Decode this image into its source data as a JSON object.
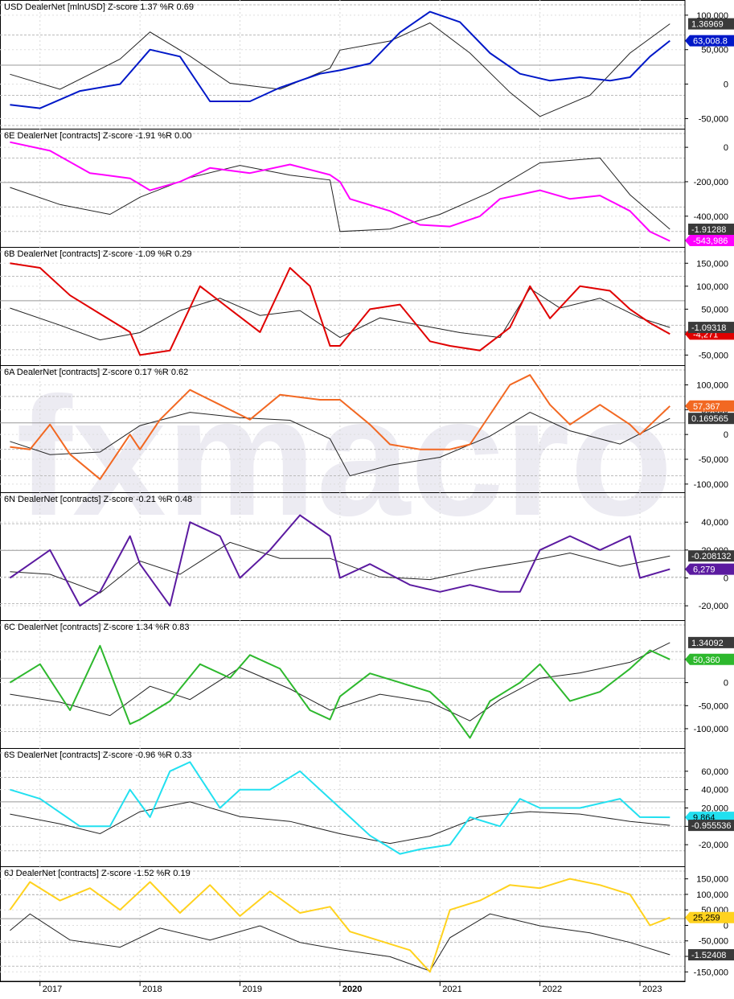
{
  "watermark": "fxmacro",
  "x_axis": {
    "year_labels": [
      "2017",
      "2018",
      "2019",
      "2020",
      "2021",
      "2022",
      "2023"
    ],
    "bold_year": "2020"
  },
  "chart_data": [
    {
      "type": "line",
      "title": "USD DealerNet [mlnUSD] Z-score 1.37   %R 0.69",
      "color": "#0018c8",
      "yticks": [
        "100,000",
        "50,000",
        "0",
        "-50,000"
      ],
      "value_label": "63,008.8",
      "zscore_label": "1.36969",
      "series": [
        {
          "name": "USD DealerNet [mlnUSD]",
          "x": [
            2016.7,
            2017.0,
            2017.4,
            2017.8,
            2018.1,
            2018.4,
            2018.7,
            2019.1,
            2019.4,
            2019.8,
            2020.0,
            2020.3,
            2020.6,
            2020.9,
            2021.2,
            2021.5,
            2021.8,
            2022.1,
            2022.4,
            2022.7,
            2022.9,
            2023.1,
            2023.3
          ],
          "values": [
            -30000,
            -35000,
            -10000,
            0,
            50000,
            40000,
            -25000,
            -25000,
            -5000,
            15000,
            20000,
            30000,
            75000,
            105000,
            90000,
            45000,
            15000,
            5000,
            10000,
            5000,
            10000,
            40000,
            63008.8
          ]
        },
        {
          "name": "Z-score",
          "x": [
            2016.7,
            2017.2,
            2017.8,
            2018.1,
            2018.5,
            2018.9,
            2019.4,
            2019.9,
            2020.0,
            2020.5,
            2020.9,
            2021.3,
            2021.7,
            2022.0,
            2022.5,
            2022.9,
            2023.3
          ],
          "values": [
            -0.3,
            -0.8,
            0.2,
            1.1,
            0.3,
            -0.6,
            -0.8,
            -0.1,
            0.5,
            0.8,
            1.4,
            0.4,
            -0.9,
            -1.7,
            -1.0,
            0.4,
            1.37
          ]
        }
      ],
      "ylim": [
        -60000,
        115000
      ],
      "zlim": [
        -2,
        2
      ]
    },
    {
      "type": "line",
      "title": "6E DealerNet [contracts] Z-score -1.91   %R 0.00",
      "color": "#ff00ff",
      "yticks": [
        "0",
        "-200,000",
        "-400,000"
      ],
      "value_label": "-543,986",
      "zscore_label": "-1.91288",
      "series": [
        {
          "name": "6E DealerNet [contracts]",
          "x": [
            2016.7,
            2017.1,
            2017.5,
            2017.9,
            2018.1,
            2018.4,
            2018.7,
            2019.1,
            2019.5,
            2019.9,
            2020.0,
            2020.1,
            2020.5,
            2020.8,
            2021.1,
            2021.4,
            2021.6,
            2022.0,
            2022.3,
            2022.6,
            2022.9,
            2023.1,
            2023.3
          ],
          "values": [
            30000,
            -20000,
            -150000,
            -180000,
            -250000,
            -200000,
            -120000,
            -150000,
            -100000,
            -160000,
            -200000,
            -300000,
            -370000,
            -450000,
            -460000,
            -400000,
            -300000,
            -250000,
            -300000,
            -280000,
            -370000,
            -490000,
            -543986
          ]
        },
        {
          "name": "Z-score",
          "x": [
            2016.7,
            2017.2,
            2017.7,
            2018.0,
            2018.5,
            2019.0,
            2019.5,
            2019.9,
            2020.0,
            2020.5,
            2021.0,
            2021.5,
            2022.0,
            2022.6,
            2022.9,
            2023.3
          ],
          "values": [
            -0.2,
            -0.9,
            -1.3,
            -0.6,
            0.2,
            0.7,
            0.3,
            0.1,
            -2.0,
            -1.9,
            -1.3,
            -0.4,
            0.8,
            1.0,
            -0.5,
            -1.91
          ]
        }
      ],
      "ylim": [
        -560000,
        80000
      ],
      "zlim": [
        -2.5,
        2
      ]
    },
    {
      "type": "line",
      "title": "6B DealerNet [contracts] Z-score -1.09   %R 0.29",
      "color": "#e00000",
      "yticks": [
        "150,000",
        "100,000",
        "50,000",
        "0",
        "-50,000"
      ],
      "value_label": "-4,271",
      "zscore_label": "-1.09318",
      "series": [
        {
          "name": "6B DealerNet [contracts]",
          "x": [
            2016.7,
            2017.0,
            2017.3,
            2017.6,
            2017.9,
            2018.0,
            2018.3,
            2018.6,
            2018.9,
            2019.2,
            2019.5,
            2019.7,
            2019.9,
            2020.0,
            2020.3,
            2020.6,
            2020.9,
            2021.1,
            2021.4,
            2021.7,
            2021.9,
            2022.1,
            2022.4,
            2022.7,
            2022.9,
            2023.1,
            2023.3
          ],
          "values": [
            150000,
            140000,
            80000,
            40000,
            0,
            -50000,
            -40000,
            100000,
            50000,
            0,
            140000,
            100000,
            -30000,
            -30000,
            50000,
            60000,
            -20000,
            -30000,
            -40000,
            10000,
            100000,
            30000,
            100000,
            90000,
            50000,
            20000,
            -4271
          ]
        },
        {
          "name": "Z-score",
          "x": [
            2016.7,
            2017.2,
            2017.6,
            2018.0,
            2018.4,
            2018.8,
            2019.2,
            2019.6,
            2020.0,
            2020.4,
            2020.8,
            2021.2,
            2021.6,
            2021.9,
            2022.2,
            2022.6,
            2023.0,
            2023.3
          ],
          "values": [
            -0.3,
            -1.0,
            -1.6,
            -1.3,
            -0.4,
            0.1,
            -0.6,
            -0.4,
            -1.5,
            -0.7,
            -1.0,
            -1.3,
            -1.5,
            0.5,
            -0.3,
            0.1,
            -0.7,
            -1.09
          ]
        }
      ],
      "ylim": [
        -65000,
        175000
      ],
      "zlim": [
        -2.5,
        2
      ]
    },
    {
      "type": "line",
      "title": "6A DealerNet [contracts] Z-score 0.17   %R 0.62",
      "color": "#f26822",
      "yticks": [
        "100,000",
        "50,000",
        "0",
        "-50,000",
        "-100,000"
      ],
      "value_label": "57,367",
      "zscore_label": "0.169565",
      "series": [
        {
          "name": "6A DealerNet [contracts]",
          "x": [
            2016.7,
            2016.9,
            2017.1,
            2017.3,
            2017.6,
            2017.9,
            2018.0,
            2018.2,
            2018.5,
            2018.8,
            2019.1,
            2019.4,
            2019.8,
            2020.0,
            2020.3,
            2020.5,
            2020.8,
            2021.1,
            2021.3,
            2021.5,
            2021.7,
            2021.9,
            2022.1,
            2022.3,
            2022.6,
            2022.9,
            2023.0,
            2023.3
          ],
          "values": [
            -25000,
            -30000,
            20000,
            -40000,
            -90000,
            0,
            -30000,
            30000,
            90000,
            60000,
            30000,
            80000,
            70000,
            70000,
            20000,
            -20000,
            -30000,
            -30000,
            -20000,
            40000,
            100000,
            120000,
            60000,
            20000,
            60000,
            20000,
            0,
            57367
          ]
        },
        {
          "name": "Z-score",
          "x": [
            2016.7,
            2017.1,
            2017.6,
            2018.0,
            2018.5,
            2019.0,
            2019.5,
            2019.9,
            2020.0,
            2020.1,
            2020.5,
            2021.0,
            2021.5,
            2021.9,
            2022.3,
            2022.8,
            2023.3
          ],
          "values": [
            -0.7,
            -1.2,
            -1.1,
            -0.1,
            0.4,
            0.2,
            0.1,
            -0.6,
            -1.3,
            -2.0,
            -1.6,
            -1.3,
            -0.5,
            0.4,
            -0.3,
            -0.8,
            0.17
          ]
        }
      ],
      "ylim": [
        -110000,
        130000
      ],
      "zlim": [
        -2.5,
        2
      ]
    },
    {
      "type": "line",
      "title": "6N DealerNet [contracts] Z-score -0.21   %R 0.48",
      "color": "#5b1aa0",
      "yticks": [
        "40,000",
        "20,000",
        "0",
        "-20,000"
      ],
      "value_label": "6,279",
      "zscore_label": "-0.208132",
      "series": [
        {
          "name": "6N DealerNet [contracts]",
          "x": [
            2016.7,
            2016.9,
            2017.1,
            2017.4,
            2017.6,
            2017.9,
            2018.0,
            2018.3,
            2018.5,
            2018.8,
            2019.0,
            2019.3,
            2019.6,
            2019.9,
            2020.0,
            2020.3,
            2020.7,
            2021.0,
            2021.3,
            2021.6,
            2021.8,
            2022.0,
            2022.3,
            2022.6,
            2022.9,
            2023.0,
            2023.3
          ],
          "values": [
            0,
            10000,
            20000,
            -20000,
            -10000,
            30000,
            10000,
            -20000,
            40000,
            30000,
            0,
            20000,
            45000,
            30000,
            0,
            10000,
            -5000,
            -10000,
            -5000,
            -10000,
            -10000,
            20000,
            30000,
            20000,
            30000,
            0,
            6279
          ]
        },
        {
          "name": "Z-score",
          "x": [
            2016.7,
            2017.1,
            2017.6,
            2018.0,
            2018.4,
            2018.9,
            2019.4,
            2019.9,
            2020.4,
            2020.9,
            2021.4,
            2021.9,
            2022.3,
            2022.8,
            2023.3
          ],
          "values": [
            -0.8,
            -0.9,
            -1.6,
            -0.4,
            -0.9,
            0.3,
            -0.3,
            -0.3,
            -1.0,
            -1.1,
            -0.7,
            -0.4,
            -0.1,
            -0.6,
            -0.21
          ]
        }
      ],
      "ylim": [
        -28000,
        58000
      ],
      "zlim": [
        -2.5,
        2
      ]
    },
    {
      "type": "line",
      "title": "6C DealerNet [contracts] Z-score 1.34   %R 0.83",
      "color": "#2db82d",
      "yticks": [
        "50,000",
        "0",
        "-50,000",
        "-100,000"
      ],
      "value_label": "50,360",
      "zscore_label": "1.34092",
      "series": [
        {
          "name": "6C DealerNet [contracts]",
          "x": [
            2016.7,
            2017.0,
            2017.3,
            2017.6,
            2017.9,
            2018.0,
            2018.3,
            2018.6,
            2018.9,
            2019.1,
            2019.4,
            2019.7,
            2019.9,
            2020.0,
            2020.3,
            2020.6,
            2020.9,
            2021.1,
            2021.3,
            2021.5,
            2021.8,
            2022.0,
            2022.3,
            2022.6,
            2022.9,
            2023.1,
            2023.3
          ],
          "values": [
            0,
            40000,
            -60000,
            80000,
            -90000,
            -80000,
            -40000,
            40000,
            10000,
            60000,
            30000,
            -60000,
            -80000,
            -30000,
            20000,
            0,
            -20000,
            -60000,
            -120000,
            -40000,
            0,
            40000,
            -40000,
            -20000,
            30000,
            70000,
            50360
          ]
        },
        {
          "name": "Z-score",
          "x": [
            2016.7,
            2017.2,
            2017.7,
            2018.1,
            2018.5,
            2019.0,
            2019.5,
            2019.9,
            2020.4,
            2020.9,
            2021.3,
            2021.6,
            2022.0,
            2022.4,
            2022.9,
            2023.3
          ],
          "values": [
            -0.6,
            -0.9,
            -1.4,
            -0.3,
            -0.8,
            0.4,
            -0.4,
            -1.2,
            -0.6,
            -0.9,
            -1.6,
            -0.8,
            0.0,
            0.2,
            0.6,
            1.34
          ]
        }
      ],
      "ylim": [
        -135000,
        125000
      ],
      "zlim": [
        -2.5,
        2
      ]
    },
    {
      "type": "line",
      "title": "6S DealerNet [contracts] Z-score -0.96   %R 0.33",
      "color": "#22e0f0",
      "yticks": [
        "60,000",
        "40,000",
        "20,000",
        "0",
        "-20,000"
      ],
      "value_label": "9,864",
      "zscore_label": "-0.955536",
      "series": [
        {
          "name": "6S DealerNet [contracts]",
          "x": [
            2016.7,
            2017.0,
            2017.4,
            2017.7,
            2017.9,
            2018.1,
            2018.3,
            2018.5,
            2018.8,
            2019.0,
            2019.3,
            2019.6,
            2019.9,
            2020.0,
            2020.3,
            2020.6,
            2020.8,
            2021.1,
            2021.3,
            2021.6,
            2021.8,
            2022.0,
            2022.4,
            2022.8,
            2023.0,
            2023.3
          ],
          "values": [
            40000,
            30000,
            0,
            0,
            40000,
            10000,
            60000,
            70000,
            20000,
            40000,
            40000,
            60000,
            30000,
            20000,
            -10000,
            -30000,
            -25000,
            -20000,
            10000,
            0,
            30000,
            20000,
            20000,
            30000,
            10000,
            9864
          ]
        },
        {
          "name": "Z-score",
          "x": [
            2016.7,
            2017.2,
            2017.6,
            2018.0,
            2018.5,
            2019.0,
            2019.5,
            2020.0,
            2020.5,
            2020.9,
            2021.4,
            2021.9,
            2022.4,
            2022.9,
            2023.3
          ],
          "values": [
            -0.5,
            -0.9,
            -1.3,
            -0.4,
            0.0,
            -0.6,
            -0.8,
            -1.3,
            -1.7,
            -1.4,
            -0.6,
            -0.4,
            -0.5,
            -0.8,
            -0.96
          ]
        }
      ],
      "ylim": [
        -40000,
        80000
      ],
      "zlim": [
        -2.5,
        2
      ]
    },
    {
      "type": "line",
      "title": "6J DealerNet [contracts] Z-score -1.52   %R 0.19",
      "color": "#ffd21e",
      "yticks": [
        "150,000",
        "100,000",
        "50,000",
        "0",
        "-50,000",
        "-100,000",
        "-150,000"
      ],
      "value_label": "25,259",
      "zscore_label": "-1.52408",
      "series": [
        {
          "name": "6J DealerNet [contracts]",
          "x": [
            2016.7,
            2016.9,
            2017.2,
            2017.5,
            2017.8,
            2018.1,
            2018.4,
            2018.7,
            2019.0,
            2019.3,
            2019.6,
            2019.9,
            2020.1,
            2020.4,
            2020.7,
            2020.9,
            2021.1,
            2021.4,
            2021.7,
            2022.0,
            2022.3,
            2022.6,
            2022.9,
            2023.1,
            2023.3
          ],
          "values": [
            50000,
            140000,
            80000,
            120000,
            50000,
            140000,
            40000,
            130000,
            30000,
            110000,
            40000,
            60000,
            -20000,
            -50000,
            -80000,
            -150000,
            50000,
            80000,
            130000,
            120000,
            150000,
            130000,
            100000,
            0,
            25259
          ]
        },
        {
          "name": "Z-score",
          "x": [
            2016.7,
            2016.9,
            2017.3,
            2017.8,
            2018.2,
            2018.7,
            2019.2,
            2019.6,
            2020.0,
            2020.5,
            2020.9,
            2021.1,
            2021.5,
            2022.0,
            2022.5,
            2022.9,
            2023.3
          ],
          "values": [
            -0.5,
            0.2,
            -0.9,
            -1.2,
            -0.4,
            -0.9,
            -0.3,
            -1.0,
            -1.3,
            -1.6,
            -2.2,
            -0.8,
            0.2,
            -0.3,
            -0.6,
            -1.0,
            -1.52
          ]
        }
      ],
      "ylim": [
        -170000,
        175000
      ],
      "zlim": [
        -2.5,
        2
      ]
    }
  ]
}
